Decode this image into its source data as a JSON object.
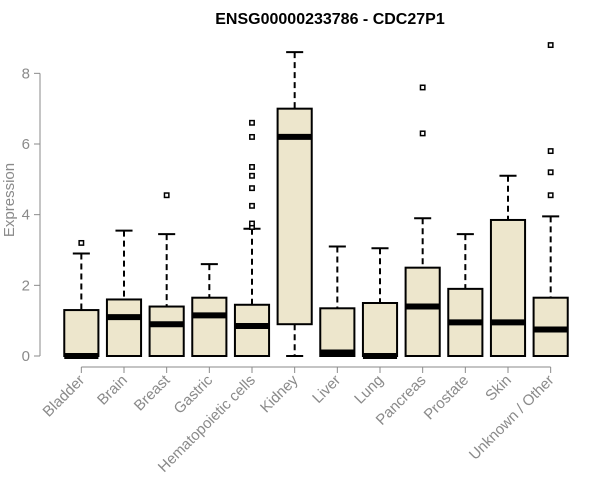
{
  "chart_data": {
    "type": "box",
    "title": "ENSG00000233786 - CDC27P1",
    "xlabel": "",
    "ylabel": "Expression",
    "ylim": [
      0,
      9
    ],
    "yticks": [
      "0",
      "2",
      "4",
      "6",
      "8"
    ],
    "grid": false,
    "colors": {
      "box_fill": "#ede6cc",
      "box_stroke": "#000000",
      "axis": "#8a8a8a"
    },
    "categories": [
      "Bladder",
      "Brain",
      "Breast",
      "Gastric",
      "Hematopoietic cells",
      "Kidney",
      "Liver",
      "Lung",
      "Pancreas",
      "Prostate",
      "Skin",
      "Unknown / Other"
    ],
    "boxes": [
      {
        "min": 0.0,
        "q1": 0.0,
        "median": 0.0,
        "q3": 1.3,
        "max": 2.9,
        "outliers": [
          3.2
        ]
      },
      {
        "min": 0.0,
        "q1": 0.0,
        "median": 1.1,
        "q3": 1.6,
        "max": 3.55,
        "outliers": []
      },
      {
        "min": 0.0,
        "q1": 0.0,
        "median": 0.9,
        "q3": 1.4,
        "max": 3.45,
        "outliers": [
          4.55
        ]
      },
      {
        "min": 0.0,
        "q1": 0.0,
        "median": 1.15,
        "q3": 1.65,
        "max": 2.6,
        "outliers": []
      },
      {
        "min": 0.0,
        "q1": 0.0,
        "median": 0.85,
        "q3": 1.45,
        "max": 3.6,
        "outliers": [
          3.65,
          3.75,
          4.25,
          4.75,
          5.1,
          5.35,
          6.2,
          6.6
        ]
      },
      {
        "min": 0.0,
        "q1": 0.9,
        "median": 6.2,
        "q3": 7.0,
        "max": 8.6,
        "outliers": []
      },
      {
        "min": 0.0,
        "q1": 0.0,
        "median": 0.1,
        "q3": 1.35,
        "max": 3.1,
        "outliers": []
      },
      {
        "min": 0.0,
        "q1": 0.0,
        "median": 0.0,
        "q3": 1.5,
        "max": 3.05,
        "outliers": []
      },
      {
        "min": 0.0,
        "q1": 0.0,
        "median": 1.4,
        "q3": 2.5,
        "max": 3.9,
        "outliers": [
          6.3,
          7.6
        ]
      },
      {
        "min": 0.0,
        "q1": 0.0,
        "median": 0.95,
        "q3": 1.9,
        "max": 3.45,
        "outliers": []
      },
      {
        "min": 0.0,
        "q1": 0.0,
        "median": 0.95,
        "q3": 3.85,
        "max": 5.1,
        "outliers": []
      },
      {
        "min": 0.0,
        "q1": 0.0,
        "median": 0.75,
        "q3": 1.65,
        "max": 3.95,
        "outliers": [
          4.55,
          5.2,
          5.8,
          8.8
        ]
      }
    ]
  }
}
